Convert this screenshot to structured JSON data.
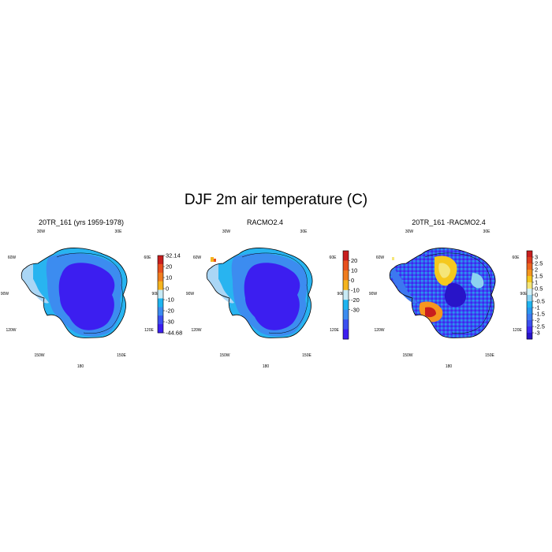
{
  "figure_title": "DJF 2m air temperature (C)",
  "chart_data": [
    {
      "type": "heatmap",
      "title": "20TR_161 (yrs 1959-1978)",
      "map": "Antarctica polar stereographic",
      "longitude_labels": [
        "30W",
        "30E",
        "60W",
        "60E",
        "90W",
        "90E",
        "120W",
        "120E",
        "150W",
        "150E",
        "180"
      ],
      "colorbar": {
        "labels": [
          "32.14",
          "20",
          "10",
          "0",
          "-10",
          "-20",
          "-30",
          "-44.68"
        ],
        "colors": [
          "#c81e1e",
          "#e8501e",
          "#f07d1e",
          "#f5b41e",
          "#c8eaf5",
          "#1eb4f0",
          "#3c8cf0",
          "#3c50f0",
          "#3c1ef0"
        ]
      },
      "field": "ice sheet mostly -20 to -44.68, coastal margins -10 to 0"
    },
    {
      "type": "heatmap",
      "title": "RACMO2.4",
      "map": "Antarctica polar stereographic",
      "longitude_labels": [
        "30W",
        "30E",
        "60W",
        "60E",
        "90W",
        "90E",
        "120W",
        "120E",
        "150W",
        "150E",
        "180"
      ],
      "colorbar": {
        "labels": [
          "20",
          "10",
          "0",
          "-10",
          "-20",
          "-30"
        ],
        "colors": [
          "#c81e1e",
          "#e8501e",
          "#f07d1e",
          "#f5b41e",
          "#c8eaf5",
          "#1eb4f0",
          "#3c8cf0",
          "#3c50f0",
          "#3c1ef0"
        ]
      },
      "field": "ice sheet mostly -20 to below -30, coastal margins -10 to 0"
    },
    {
      "type": "heatmap",
      "title": "20TR_161 -RACMO2.4",
      "map": "Antarctica polar stereographic",
      "longitude_labels": [
        "30W",
        "30E",
        "60W",
        "60E",
        "90W",
        "90E",
        "120W",
        "120E",
        "150W",
        "150E",
        "180"
      ],
      "colorbar": {
        "labels": [
          "3",
          "2.5",
          "2",
          "1.5",
          "1",
          "0.5",
          "0",
          "-0.5",
          "-1",
          "-1.5",
          "-2",
          "-2.5",
          "-3"
        ],
        "colors": [
          "#c81e1e",
          "#dc3c1e",
          "#ec641e",
          "#f5961e",
          "#f5c81e",
          "#f5e678",
          "#d2f0f5",
          "#8cd2f0",
          "#1eb4f0",
          "#2896f0",
          "#3c78f0",
          "#3c50f0",
          "#3c28f0",
          "#2814c8"
        ]
      },
      "field": "difference mostly -0.5 to -3; positive anomalies over Dronning Maud Land and Ross Ice Shelf"
    }
  ]
}
